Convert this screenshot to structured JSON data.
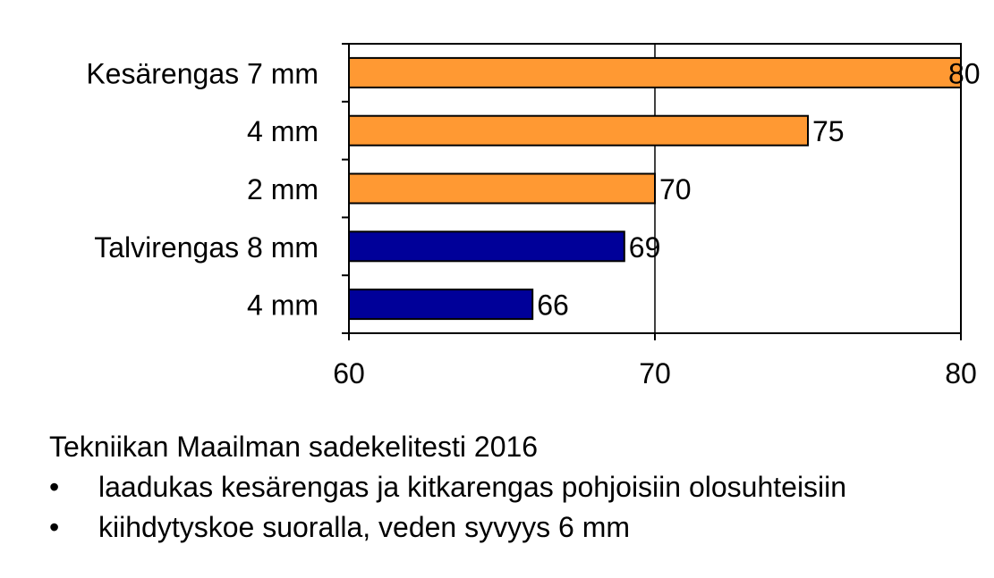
{
  "chart_data": {
    "type": "bar",
    "orientation": "horizontal",
    "categories": [
      "Kesärengas 7 mm",
      "4 mm",
      "2 mm",
      "Talvirengas 8 mm",
      "4 mm"
    ],
    "values": [
      80,
      75,
      70,
      69,
      66
    ],
    "value_labels": [
      "80",
      "75",
      "70",
      "69",
      "66"
    ],
    "bar_colors": [
      "#ff9933",
      "#ff9933",
      "#ff9933",
      "#000099",
      "#000099"
    ],
    "xlim": [
      60,
      80
    ],
    "xticks": [
      "60",
      "70",
      "80"
    ],
    "grid": "vertical",
    "title": "",
    "xlabel": "",
    "ylabel": ""
  },
  "notes": {
    "title": "Tekniikan Maailman sadekelitesti 2016",
    "bullet_symbol": "•",
    "bullets": [
      "laadukas kesärengas ja kitkarengas pohjoisiin olosuhteisiin",
      "kiihdytyskoe suoralla, veden syvyys 6 mm"
    ]
  }
}
